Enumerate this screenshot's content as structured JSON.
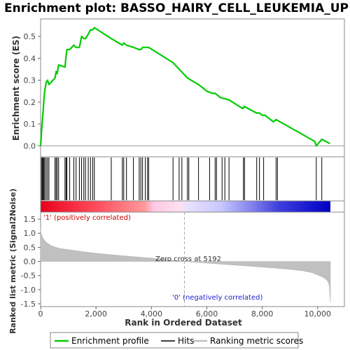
{
  "chart_data": {
    "type": "line",
    "title": "Enrichment plot: BASSO_HAIRY_CELL_LEUKEMIA_UP",
    "top_panel": {
      "ylabel": "Enrichment score (ES)",
      "ylim": [
        -0.05,
        0.58
      ],
      "yticks": [
        "0.0",
        "0.1",
        "0.2",
        "0.3",
        "0.4",
        "0.5"
      ],
      "series": [
        {
          "name": "Enrichment profile",
          "color": "#00cc00",
          "x": [
            0,
            30,
            60,
            90,
            120,
            150,
            200,
            250,
            300,
            520,
            560,
            600,
            650,
            880,
            920,
            950,
            1050,
            1200,
            1280,
            1400,
            1480,
            1560,
            1620,
            1720,
            1800,
            1880,
            1940,
            2550,
            2950,
            3000,
            3100,
            3350,
            3560,
            3620,
            3680,
            3780,
            3860,
            3900,
            4780,
            5000,
            5300,
            5700,
            6000,
            6200,
            6300,
            6500,
            6800,
            7300,
            7350,
            7800,
            7900,
            8000,
            8100,
            8400,
            8500,
            9900,
            9950,
            10150,
            10450
          ],
          "y": [
            0.0,
            0.06,
            0.11,
            0.16,
            0.21,
            0.25,
            0.29,
            0.3,
            0.28,
            0.31,
            0.34,
            0.33,
            0.37,
            0.36,
            0.41,
            0.44,
            0.44,
            0.46,
            0.45,
            0.45,
            0.5,
            0.49,
            0.49,
            0.51,
            0.53,
            0.53,
            0.54,
            0.49,
            0.46,
            0.47,
            0.46,
            0.45,
            0.44,
            0.44,
            0.45,
            0.45,
            0.45,
            0.45,
            0.38,
            0.35,
            0.31,
            0.28,
            0.25,
            0.24,
            0.24,
            0.22,
            0.21,
            0.17,
            0.18,
            0.15,
            0.15,
            0.14,
            0.14,
            0.11,
            0.12,
            0.02,
            0.0,
            0.03,
            0.01
          ]
        }
      ]
    },
    "hits": [
      30,
      60,
      90,
      120,
      150,
      200,
      250,
      300,
      520,
      560,
      600,
      650,
      880,
      920,
      950,
      1050,
      1200,
      1280,
      1400,
      1480,
      1560,
      1620,
      1720,
      1800,
      1880,
      1940,
      2550,
      2950,
      3000,
      3100,
      3350,
      3560,
      3620,
      3680,
      3780,
      3860,
      3900,
      4780,
      5000,
      5100,
      5300,
      5350,
      5700,
      6100,
      6300,
      6350,
      6550,
      6650,
      6800,
      7320,
      7360,
      7800,
      7900,
      8050,
      8500,
      8550,
      9950,
      10150
    ],
    "bottom_panel": {
      "ylabel": "Ranked list metric (Signal2Noise)",
      "ylim": [
        -1.6,
        1.75
      ],
      "yticks": [
        "1.5",
        "1.0",
        "0.5",
        "0.0",
        "-0.5",
        "-1.0",
        "-1.5"
      ],
      "zero_cross_label": "Zero cross at 5192",
      "zero_cross": 5192,
      "positive_label": "'1' (positively correlated)",
      "negative_label": "'0' (negatively correlated)",
      "metric_profile": {
        "x": [
          0,
          20,
          50,
          100,
          200,
          400,
          700,
          1000,
          1500,
          2000,
          3000,
          4000,
          5192,
          6000,
          7000,
          8000,
          9000,
          9500,
          9800,
          10000,
          10200,
          10350,
          10420,
          10460
        ],
        "y": [
          1.15,
          1.0,
          0.9,
          0.8,
          0.68,
          0.55,
          0.46,
          0.42,
          0.35,
          0.29,
          0.2,
          0.12,
          0.0,
          -0.06,
          -0.13,
          -0.2,
          -0.28,
          -0.34,
          -0.4,
          -0.48,
          -0.56,
          -0.68,
          -0.85,
          -1.45
        ]
      }
    },
    "xlabel": "Rank in Ordered Dataset",
    "xlim": [
      0,
      10460
    ],
    "xticks": [
      "0",
      "2,000",
      "4,000",
      "6,000",
      "8,000",
      "10,000"
    ],
    "xtick_values": [
      0,
      2000,
      4000,
      6000,
      8000,
      10000
    ],
    "legend": {
      "placement": "bottom",
      "items": [
        "Enrichment profile",
        "Hits",
        "Ranking metric scores"
      ]
    },
    "colors": {
      "profile": "#00cc00",
      "positive": "#ff2020",
      "negative": "#0000cc",
      "metric_fill": "#c0c0c0",
      "pos_label": "#cc0000",
      "neg_label": "#2222cc"
    }
  }
}
